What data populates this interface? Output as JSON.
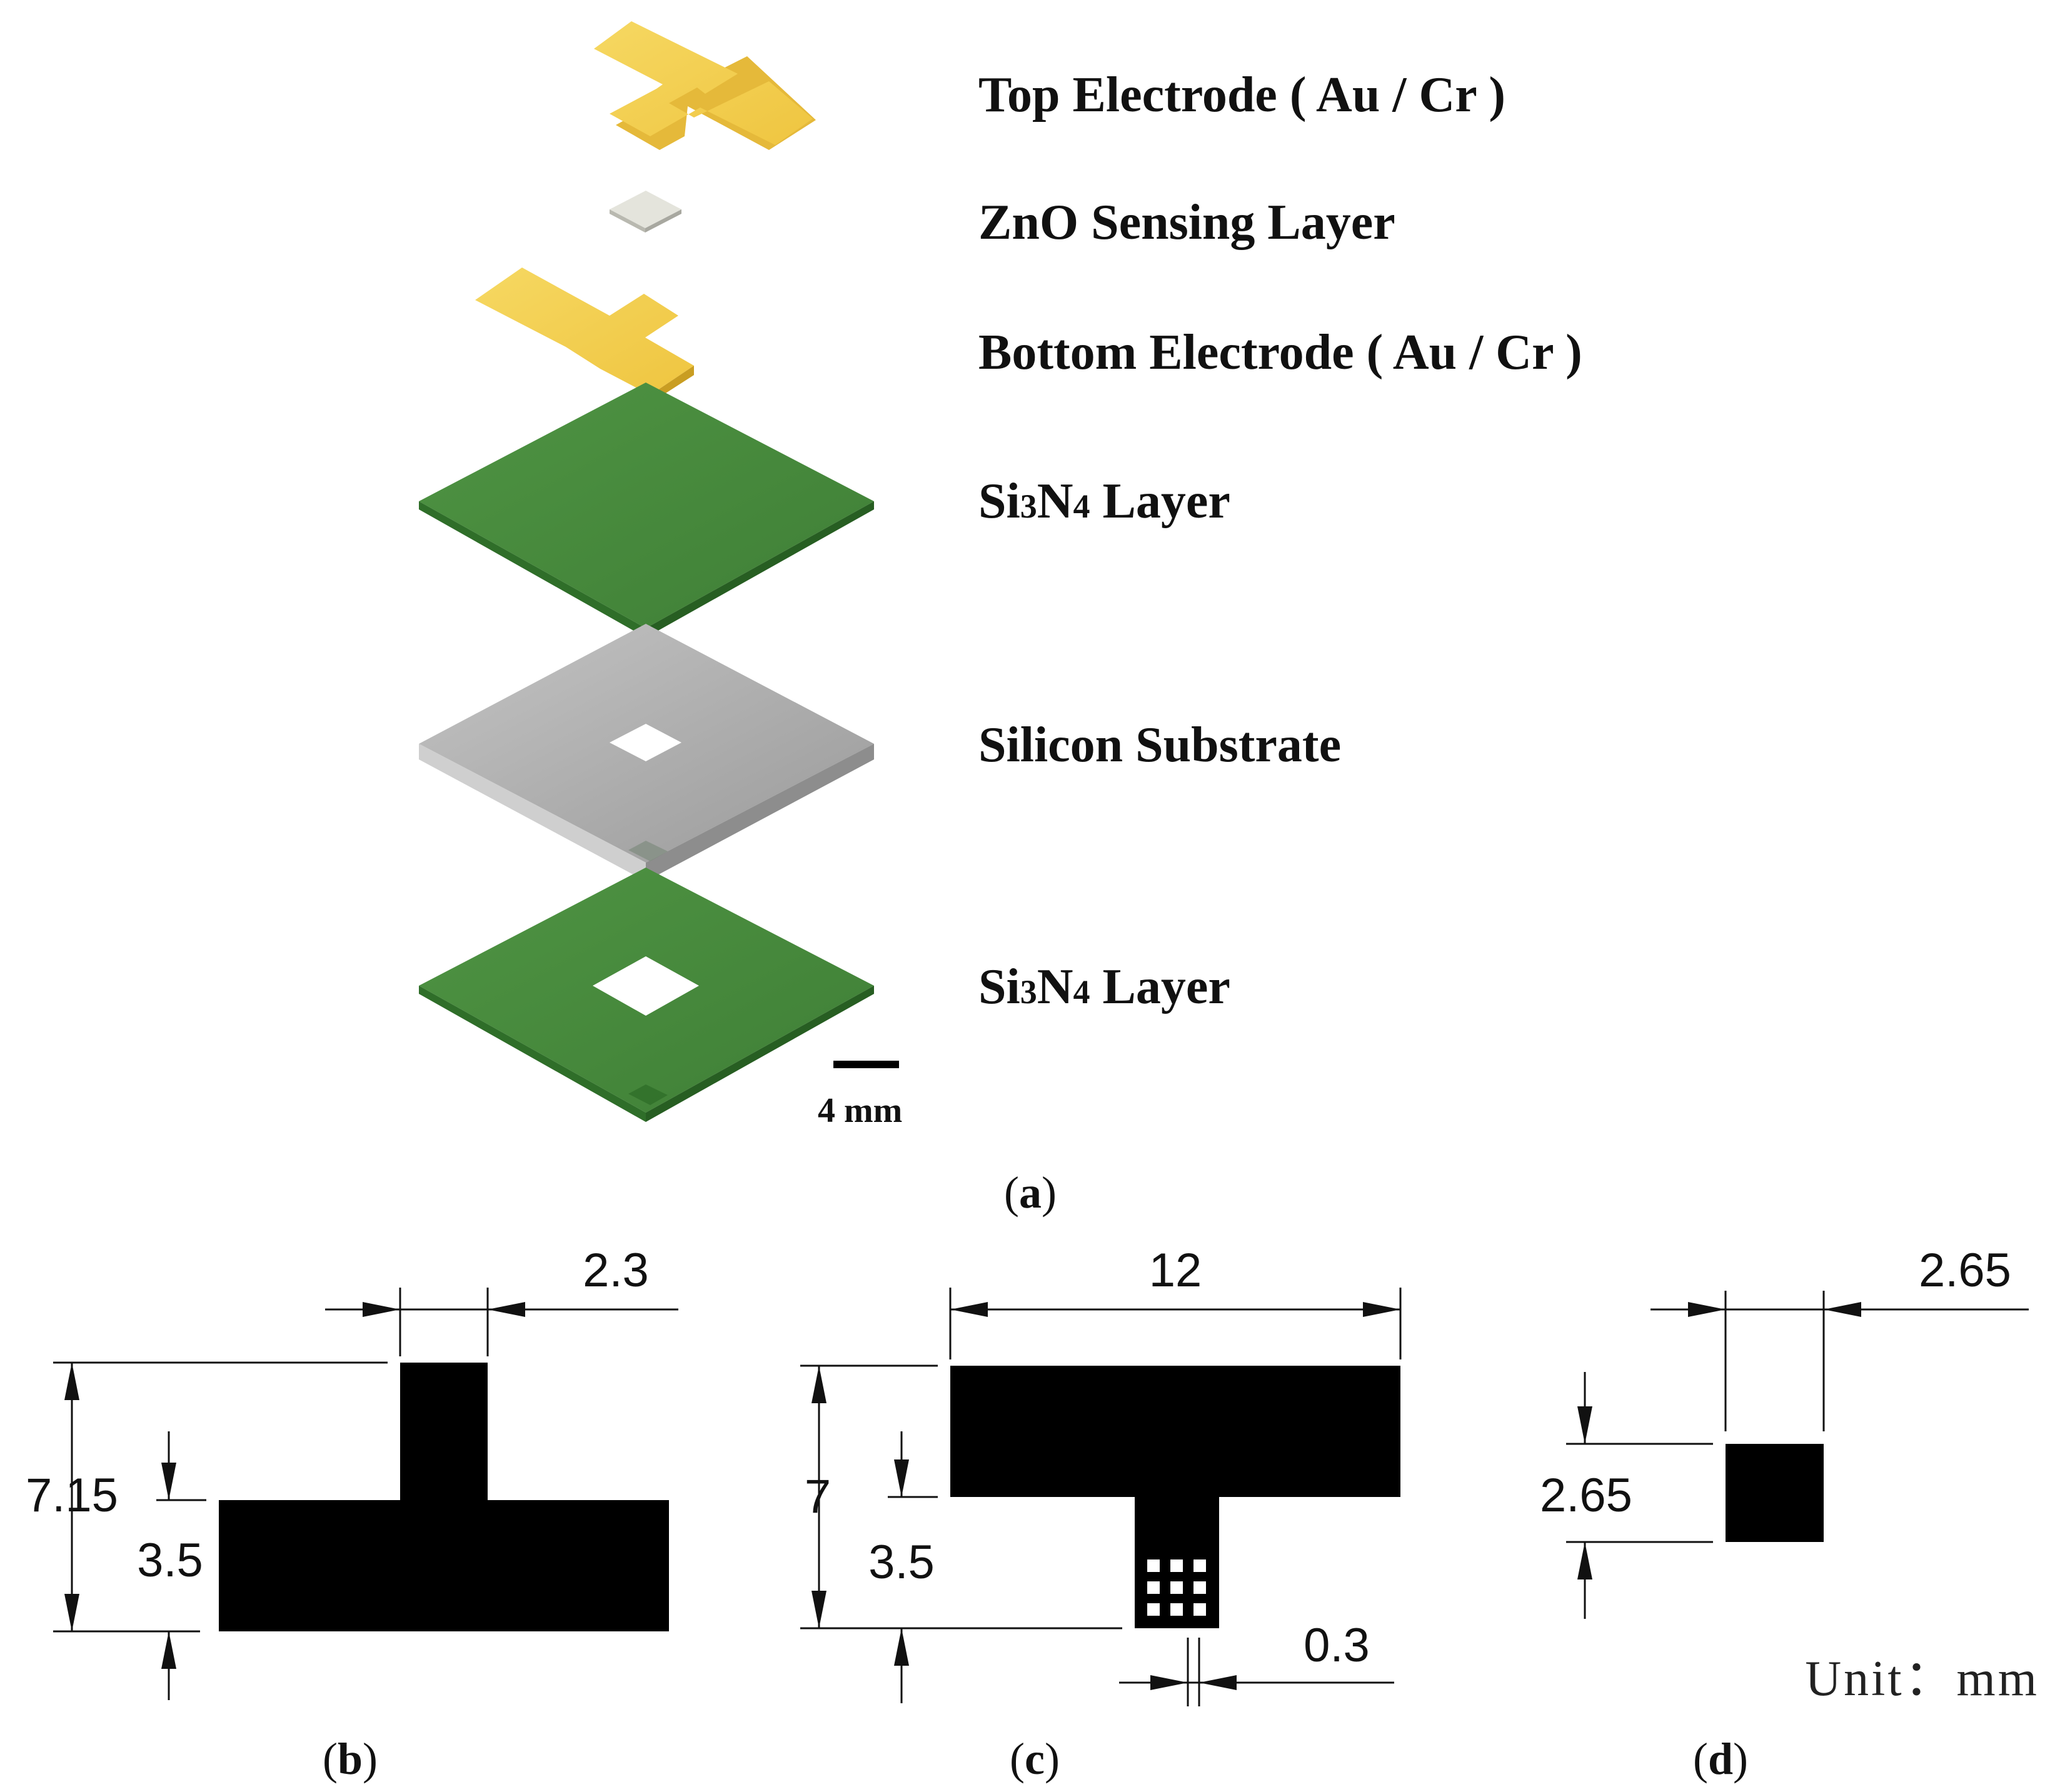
{
  "panel_a": {
    "layers": [
      {
        "name": "top-electrode",
        "label": "Top Electrode ( Au / Cr )",
        "color": "#f2cc4f"
      },
      {
        "name": "zno-layer",
        "label": "ZnO Sensing Layer",
        "color": "#d9d9d0"
      },
      {
        "name": "bottom-electrode",
        "label": "Bottom Electrode ( Au / Cr )",
        "color": "#f2cc4f"
      },
      {
        "name": "si3n4-top",
        "label_main": "Si",
        "label_sub1": "3",
        "label_mid": "N",
        "label_sub2": "4",
        "label_tail": " Layer",
        "color": "#4a8c3f"
      },
      {
        "name": "silicon-substrate",
        "label": "Silicon Substrate",
        "color": "#b5b5b5"
      },
      {
        "name": "si3n4-bottom",
        "label_main": "Si",
        "label_sub1": "3",
        "label_mid": "N",
        "label_sub2": "4",
        "label_tail": " Layer",
        "color": "#4a8c3f"
      }
    ],
    "scale_bar": "4 mm",
    "caption_open": "(",
    "caption_letter": "a",
    "caption_close": ")"
  },
  "panel_b": {
    "dims": {
      "width_top": "2.3",
      "height_total": "7.15",
      "height_bar": "3.5"
    },
    "caption_open": "(",
    "caption_letter": "b",
    "caption_close": ")"
  },
  "panel_c": {
    "dims": {
      "width_total": "12",
      "height_total": "7",
      "height_stem": "3.5",
      "hole": "0.3"
    },
    "caption_open": "(",
    "caption_letter": "c",
    "caption_close": ")"
  },
  "panel_d": {
    "dims": {
      "width": "2.65",
      "height": "2.65"
    },
    "unit": "Unit：mm",
    "caption_open": "(",
    "caption_letter": "d",
    "caption_close": ")"
  },
  "colors": {
    "gold": "#f2cc4f",
    "green": "#4a8c3f",
    "silicon": "#b3b3b3",
    "black": "#000000"
  }
}
